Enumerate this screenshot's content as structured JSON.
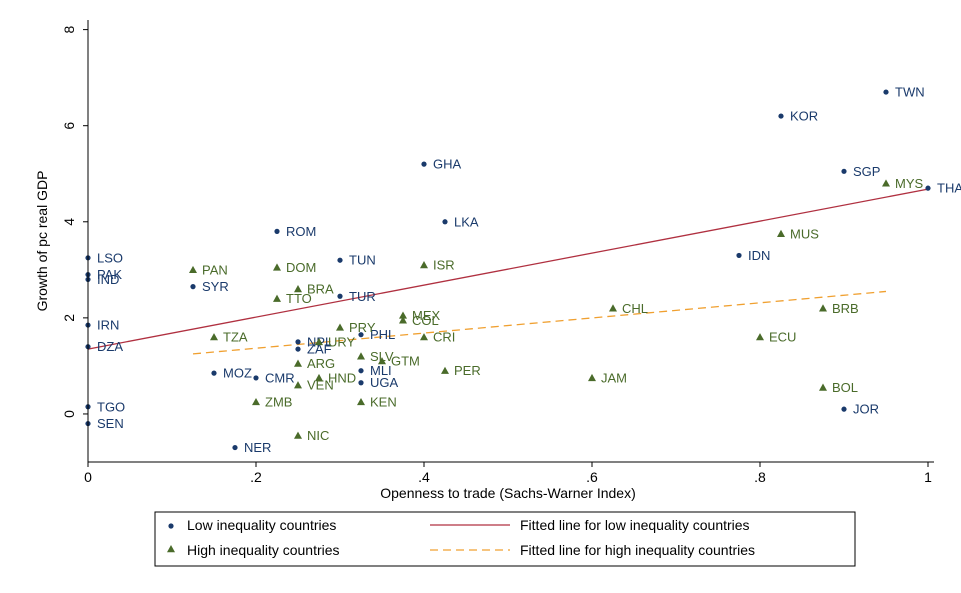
{
  "chart_data": {
    "type": "scatter",
    "xlabel": "Openness to trade (Sachs-Warner Index)",
    "ylabel": "Growth of pc real GDP",
    "xlim": [
      0,
      1
    ],
    "ylim": [
      -1,
      8.2
    ],
    "xticks": [
      0,
      0.2,
      0.4,
      0.6,
      0.8,
      1
    ],
    "xtick_labels": [
      "0",
      ".2",
      ".4",
      ".6",
      ".8",
      "1"
    ],
    "yticks": [
      0,
      2,
      4,
      6,
      8
    ],
    "ytick_labels": [
      "0",
      "2",
      "4",
      "6",
      "8"
    ],
    "grid": false,
    "legend_position": "bottom",
    "colors": {
      "low": "#1a3a6b",
      "high": "#4a6b2a",
      "fit_low": "#b03040",
      "fit_high": "#f0a030",
      "axis": "#000000"
    },
    "series": [
      {
        "name": "Low inequality countries",
        "marker": "circle",
        "points": [
          {
            "label": "TWN",
            "x": 0.95,
            "y": 6.7
          },
          {
            "label": "KOR",
            "x": 0.825,
            "y": 6.2
          },
          {
            "label": "SGP",
            "x": 0.9,
            "y": 5.05
          },
          {
            "label": "THA",
            "x": 1.0,
            "y": 4.7
          },
          {
            "label": "GHA",
            "x": 0.4,
            "y": 5.2
          },
          {
            "label": "LKA",
            "x": 0.425,
            "y": 4.0
          },
          {
            "label": "ROM",
            "x": 0.225,
            "y": 3.8
          },
          {
            "label": "IDN",
            "x": 0.775,
            "y": 3.3
          },
          {
            "label": "TUN",
            "x": 0.3,
            "y": 3.2
          },
          {
            "label": "TUR",
            "x": 0.3,
            "y": 2.45
          },
          {
            "label": "LSO",
            "x": 0.0,
            "y": 3.25
          },
          {
            "label": "PAK",
            "x": 0.0,
            "y": 2.9
          },
          {
            "label": "IND",
            "x": 0.0,
            "y": 2.8
          },
          {
            "label": "SYR",
            "x": 0.125,
            "y": 2.65
          },
          {
            "label": "IRN",
            "x": 0.0,
            "y": 1.85
          },
          {
            "label": "DZA",
            "x": 0.0,
            "y": 1.4
          },
          {
            "label": "NPL",
            "x": 0.25,
            "y": 1.5
          },
          {
            "label": "ZAF",
            "x": 0.25,
            "y": 1.35
          },
          {
            "label": "PHL",
            "x": 0.325,
            "y": 1.65
          },
          {
            "label": "MOZ",
            "x": 0.15,
            "y": 0.85
          },
          {
            "label": "CMR",
            "x": 0.2,
            "y": 0.75
          },
          {
            "label": "MLI",
            "x": 0.325,
            "y": 0.9
          },
          {
            "label": "UGA",
            "x": 0.325,
            "y": 0.65
          },
          {
            "label": "TGO",
            "x": 0.0,
            "y": 0.15
          },
          {
            "label": "SEN",
            "x": 0.0,
            "y": -0.2
          },
          {
            "label": "NER",
            "x": 0.175,
            "y": -0.7
          },
          {
            "label": "JOR",
            "x": 0.9,
            "y": 0.1
          }
        ]
      },
      {
        "name": "High inequality countries",
        "marker": "triangle",
        "points": [
          {
            "label": "MYS",
            "x": 0.95,
            "y": 4.8
          },
          {
            "label": "MUS",
            "x": 0.825,
            "y": 3.75
          },
          {
            "label": "PAN",
            "x": 0.125,
            "y": 3.0
          },
          {
            "label": "DOM",
            "x": 0.225,
            "y": 3.05
          },
          {
            "label": "ISR",
            "x": 0.4,
            "y": 3.1
          },
          {
            "label": "BRA",
            "x": 0.25,
            "y": 2.6
          },
          {
            "label": "TTO",
            "x": 0.225,
            "y": 2.4
          },
          {
            "label": "CHL",
            "x": 0.625,
            "y": 2.2
          },
          {
            "label": "BRB",
            "x": 0.875,
            "y": 2.2
          },
          {
            "label": "MEX",
            "x": 0.375,
            "y": 2.05
          },
          {
            "label": "COL",
            "x": 0.375,
            "y": 1.95
          },
          {
            "label": "PRY",
            "x": 0.3,
            "y": 1.8
          },
          {
            "label": "CRI",
            "x": 0.4,
            "y": 1.6
          },
          {
            "label": "TZA",
            "x": 0.15,
            "y": 1.6
          },
          {
            "label": "URY",
            "x": 0.275,
            "y": 1.5
          },
          {
            "label": "ECU",
            "x": 0.8,
            "y": 1.6
          },
          {
            "label": "SLV",
            "x": 0.325,
            "y": 1.2
          },
          {
            "label": "GTM",
            "x": 0.35,
            "y": 1.1
          },
          {
            "label": "ARG",
            "x": 0.25,
            "y": 1.05
          },
          {
            "label": "PER",
            "x": 0.425,
            "y": 0.9
          },
          {
            "label": "HND",
            "x": 0.275,
            "y": 0.75
          },
          {
            "label": "VEN",
            "x": 0.25,
            "y": 0.6
          },
          {
            "label": "JAM",
            "x": 0.6,
            "y": 0.75
          },
          {
            "label": "BOL",
            "x": 0.875,
            "y": 0.55
          },
          {
            "label": "ZMB",
            "x": 0.2,
            "y": 0.25
          },
          {
            "label": "KEN",
            "x": 0.325,
            "y": 0.25
          },
          {
            "label": "NIC",
            "x": 0.25,
            "y": -0.45
          }
        ]
      }
    ],
    "fitted_lines": [
      {
        "name": "Fitted line for low inequality countries",
        "style": "solid",
        "x": [
          0,
          1
        ],
        "y": [
          1.35,
          4.68
        ]
      },
      {
        "name": "Fitted line for high inequality countries",
        "style": "dashed",
        "x": [
          0.125,
          0.95
        ],
        "y": [
          1.25,
          2.55
        ]
      }
    ]
  }
}
